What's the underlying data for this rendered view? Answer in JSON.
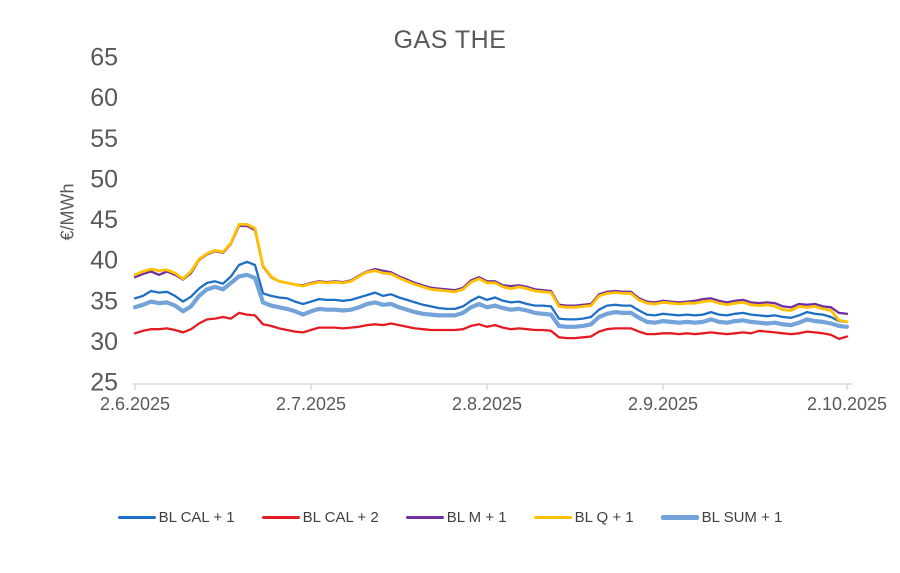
{
  "chart": {
    "title": "GAS THE",
    "ylabel": "€/MWh",
    "text_color": "#595959",
    "axis_color": "#D9D9D9",
    "background": "#FFFFFF"
  },
  "chart_data": {
    "type": "line",
    "title": "GAS THE",
    "xlabel": "",
    "ylabel": "€/MWh",
    "ylim": [
      25,
      65
    ],
    "y_ticks": [
      25,
      30,
      35,
      40,
      45,
      50,
      55,
      60,
      65
    ],
    "x_tick_labels": [
      "2.6.2025",
      "2.7.2025",
      "2.8.2025",
      "2.9.2025",
      "2.10.2025"
    ],
    "x_tick_indices": [
      0,
      22,
      44,
      66,
      89
    ],
    "n_points": 90,
    "grid": false,
    "legend_position": "bottom",
    "series": [
      {
        "name": "BL CAL + 1",
        "color": "#1F6FC5",
        "width": 2.3,
        "values": [
          35.3,
          35.6,
          36.2,
          36.0,
          36.1,
          35.6,
          34.9,
          35.5,
          36.5,
          37.2,
          37.4,
          37.1,
          38.0,
          39.4,
          39.8,
          39.4,
          35.9,
          35.6,
          35.4,
          35.3,
          34.9,
          34.6,
          34.9,
          35.2,
          35.1,
          35.1,
          35.0,
          35.1,
          35.4,
          35.7,
          36.0,
          35.6,
          35.8,
          35.4,
          35.1,
          34.8,
          34.5,
          34.3,
          34.1,
          34.0,
          34.0,
          34.3,
          35.0,
          35.5,
          35.1,
          35.4,
          35.0,
          34.8,
          34.9,
          34.6,
          34.4,
          34.4,
          34.3,
          32.8,
          32.7,
          32.7,
          32.8,
          33.0,
          33.9,
          34.4,
          34.5,
          34.4,
          34.4,
          33.8,
          33.3,
          33.2,
          33.4,
          33.3,
          33.2,
          33.3,
          33.2,
          33.3,
          33.6,
          33.3,
          33.2,
          33.4,
          33.5,
          33.3,
          33.2,
          33.1,
          33.2,
          33.0,
          32.9,
          33.2,
          33.6,
          33.4,
          33.3,
          33.0,
          32.5,
          32.4
        ]
      },
      {
        "name": "BL CAL + 2",
        "color": "#E31B23",
        "width": 2.3,
        "values": [
          31.0,
          31.3,
          31.5,
          31.5,
          31.6,
          31.4,
          31.1,
          31.5,
          32.2,
          32.7,
          32.8,
          33.0,
          32.8,
          33.5,
          33.3,
          33.2,
          32.1,
          31.9,
          31.6,
          31.4,
          31.2,
          31.1,
          31.4,
          31.7,
          31.7,
          31.7,
          31.6,
          31.7,
          31.8,
          32.0,
          32.1,
          32.0,
          32.2,
          32.0,
          31.8,
          31.6,
          31.5,
          31.4,
          31.4,
          31.4,
          31.4,
          31.5,
          31.9,
          32.1,
          31.8,
          32.0,
          31.7,
          31.5,
          31.6,
          31.5,
          31.4,
          31.4,
          31.3,
          30.5,
          30.4,
          30.4,
          30.5,
          30.6,
          31.2,
          31.5,
          31.6,
          31.6,
          31.6,
          31.2,
          30.9,
          30.9,
          31.0,
          31.0,
          30.9,
          31.0,
          30.9,
          31.0,
          31.1,
          31.0,
          30.9,
          31.0,
          31.1,
          31.0,
          31.3,
          31.2,
          31.1,
          31.0,
          30.9,
          31.0,
          31.2,
          31.1,
          31.0,
          30.8,
          30.3,
          30.6
        ]
      },
      {
        "name": "BL M + 1",
        "color": "#7030A0",
        "width": 2.3,
        "values": [
          37.9,
          38.3,
          38.6,
          38.2,
          38.6,
          38.2,
          37.6,
          38.4,
          40.0,
          40.7,
          41.1,
          40.9,
          42.0,
          44.2,
          44.2,
          43.7,
          39.2,
          37.9,
          37.4,
          37.2,
          37.0,
          36.9,
          37.2,
          37.4,
          37.3,
          37.4,
          37.3,
          37.5,
          38.1,
          38.6,
          38.9,
          38.7,
          38.5,
          38.0,
          37.6,
          37.2,
          36.9,
          36.6,
          36.5,
          36.4,
          36.3,
          36.6,
          37.5,
          37.9,
          37.4,
          37.4,
          36.9,
          36.8,
          36.9,
          36.7,
          36.4,
          36.3,
          36.2,
          34.5,
          34.4,
          34.4,
          34.5,
          34.6,
          35.8,
          36.1,
          36.2,
          36.1,
          36.1,
          35.3,
          34.9,
          34.8,
          35.0,
          34.9,
          34.8,
          34.9,
          35.0,
          35.2,
          35.3,
          35.0,
          34.8,
          35.0,
          35.1,
          34.8,
          34.7,
          34.8,
          34.7,
          34.3,
          34.2,
          34.6,
          34.5,
          34.6,
          34.3,
          34.2,
          33.5,
          33.4
        ]
      },
      {
        "name": "BL Q + 1",
        "color": "#FFC000",
        "width": 2.8,
        "values": [
          38.2,
          38.6,
          38.9,
          38.7,
          38.8,
          38.4,
          37.7,
          38.6,
          40.1,
          40.8,
          41.2,
          41.0,
          42.1,
          44.4,
          44.4,
          43.9,
          39.3,
          38.0,
          37.4,
          37.2,
          37.0,
          36.8,
          37.1,
          37.3,
          37.2,
          37.3,
          37.2,
          37.4,
          38.0,
          38.5,
          38.7,
          38.4,
          38.3,
          37.8,
          37.4,
          37.0,
          36.7,
          36.4,
          36.3,
          36.2,
          36.1,
          36.4,
          37.3,
          37.7,
          37.2,
          37.2,
          36.7,
          36.5,
          36.7,
          36.5,
          36.2,
          36.1,
          36.0,
          34.3,
          34.2,
          34.2,
          34.3,
          34.4,
          35.6,
          35.9,
          36.0,
          35.9,
          35.9,
          35.1,
          34.7,
          34.6,
          34.8,
          34.7,
          34.6,
          34.7,
          34.7,
          34.9,
          35.0,
          34.7,
          34.5,
          34.7,
          34.8,
          34.5,
          34.4,
          34.5,
          34.3,
          33.9,
          33.8,
          34.3,
          34.2,
          34.3,
          34.0,
          33.8,
          32.6,
          32.4
        ]
      },
      {
        "name": "BL SUM + 1",
        "color": "#74A3DA",
        "width": 4.2,
        "values": [
          34.2,
          34.5,
          34.9,
          34.7,
          34.8,
          34.4,
          33.7,
          34.3,
          35.6,
          36.4,
          36.7,
          36.4,
          37.2,
          38.0,
          38.2,
          37.8,
          34.8,
          34.4,
          34.2,
          34.0,
          33.7,
          33.3,
          33.7,
          34.0,
          33.9,
          33.9,
          33.8,
          33.9,
          34.2,
          34.6,
          34.8,
          34.5,
          34.6,
          34.2,
          33.9,
          33.6,
          33.4,
          33.3,
          33.2,
          33.2,
          33.2,
          33.5,
          34.2,
          34.6,
          34.2,
          34.4,
          34.1,
          33.9,
          34.0,
          33.8,
          33.5,
          33.4,
          33.3,
          31.9,
          31.8,
          31.8,
          31.9,
          32.1,
          33.0,
          33.4,
          33.6,
          33.5,
          33.5,
          32.9,
          32.4,
          32.3,
          32.5,
          32.4,
          32.3,
          32.4,
          32.3,
          32.4,
          32.7,
          32.4,
          32.3,
          32.5,
          32.6,
          32.4,
          32.3,
          32.2,
          32.3,
          32.1,
          32.0,
          32.3,
          32.7,
          32.5,
          32.4,
          32.2,
          31.9,
          31.8
        ]
      }
    ]
  }
}
